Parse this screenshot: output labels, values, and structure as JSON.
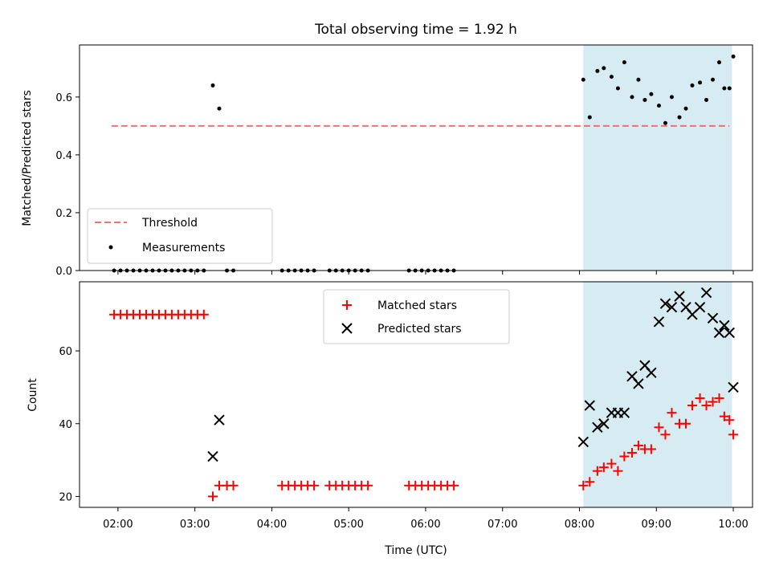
{
  "figure": {
    "title": "Total observing time = 1.92 h"
  },
  "chart_data": [
    {
      "type": "scatter",
      "ylabel": "Matched/Predicted stars",
      "xlim": [
        "01:30",
        "10:15"
      ],
      "ylim": [
        0,
        0.78
      ],
      "yticks": [
        0.0,
        0.2,
        0.4,
        0.6
      ],
      "ytick_labels": [
        "0.0",
        "0.2",
        "0.4",
        "0.6"
      ],
      "grid": false,
      "legend_position": "lower-left",
      "highlight_span": {
        "from": "08:03",
        "to": "09:59",
        "color": "#add8e6"
      },
      "threshold": {
        "name": "Threshold",
        "y": 0.5,
        "x_from": "01:55",
        "x_to": "09:57",
        "color": "#ff6e6e"
      },
      "measurements": {
        "name": "Measurements",
        "color": "#000000",
        "points": [
          [
            "01:57",
            0.0
          ],
          [
            "02:02",
            0.0
          ],
          [
            "02:07",
            0.0
          ],
          [
            "02:12",
            0.0
          ],
          [
            "02:17",
            0.0
          ],
          [
            "02:22",
            0.0
          ],
          [
            "02:27",
            0.0
          ],
          [
            "02:32",
            0.0
          ],
          [
            "02:37",
            0.0
          ],
          [
            "02:42",
            0.0
          ],
          [
            "02:47",
            0.0
          ],
          [
            "02:52",
            0.0
          ],
          [
            "02:57",
            0.0
          ],
          [
            "03:02",
            0.0
          ],
          [
            "03:07",
            0.0
          ],
          [
            "03:14",
            0.64
          ],
          [
            "03:19",
            0.56
          ],
          [
            "03:25",
            0.0
          ],
          [
            "03:30",
            0.0
          ],
          [
            "04:08",
            0.0
          ],
          [
            "04:13",
            0.0
          ],
          [
            "04:18",
            0.0
          ],
          [
            "04:23",
            0.0
          ],
          [
            "04:28",
            0.0
          ],
          [
            "04:33",
            0.0
          ],
          [
            "04:45",
            0.0
          ],
          [
            "04:50",
            0.0
          ],
          [
            "04:55",
            0.0
          ],
          [
            "05:00",
            0.0
          ],
          [
            "05:05",
            0.0
          ],
          [
            "05:10",
            0.0
          ],
          [
            "05:15",
            0.0
          ],
          [
            "05:47",
            0.0
          ],
          [
            "05:52",
            0.0
          ],
          [
            "05:57",
            0.0
          ],
          [
            "06:02",
            0.0
          ],
          [
            "06:07",
            0.0
          ],
          [
            "06:12",
            0.0
          ],
          [
            "06:17",
            0.0
          ],
          [
            "06:22",
            0.0
          ],
          [
            "08:03",
            0.66
          ],
          [
            "08:08",
            0.53
          ],
          [
            "08:14",
            0.69
          ],
          [
            "08:19",
            0.7
          ],
          [
            "08:25",
            0.67
          ],
          [
            "08:30",
            0.63
          ],
          [
            "08:35",
            0.72
          ],
          [
            "08:41",
            0.6
          ],
          [
            "08:46",
            0.66
          ],
          [
            "08:51",
            0.59
          ],
          [
            "08:56",
            0.61
          ],
          [
            "09:02",
            0.57
          ],
          [
            "09:07",
            0.51
          ],
          [
            "09:12",
            0.6
          ],
          [
            "09:18",
            0.53
          ],
          [
            "09:23",
            0.56
          ],
          [
            "09:28",
            0.64
          ],
          [
            "09:34",
            0.65
          ],
          [
            "09:39",
            0.59
          ],
          [
            "09:44",
            0.66
          ],
          [
            "09:49",
            0.72
          ],
          [
            "09:53",
            0.63
          ],
          [
            "09:57",
            0.63
          ],
          [
            "10:00",
            0.74
          ]
        ]
      }
    },
    {
      "type": "scatter",
      "xlabel": "Time (UTC)",
      "ylabel": "Count",
      "xlim": [
        "01:30",
        "10:15"
      ],
      "xticks": [
        "02:00",
        "03:00",
        "04:00",
        "05:00",
        "06:00",
        "07:00",
        "08:00",
        "09:00",
        "10:00"
      ],
      "ylim": [
        17,
        79
      ],
      "yticks": [
        20,
        40,
        60
      ],
      "grid": false,
      "legend_position": "upper-center",
      "highlight_span": {
        "from": "08:03",
        "to": "09:59",
        "color": "#add8e6"
      },
      "series": [
        {
          "name": "Matched stars",
          "marker": "+",
          "color": "#ff0000",
          "points": [
            [
              "01:57",
              70
            ],
            [
              "02:02",
              70
            ],
            [
              "02:07",
              70
            ],
            [
              "02:12",
              70
            ],
            [
              "02:17",
              70
            ],
            [
              "02:22",
              70
            ],
            [
              "02:27",
              70
            ],
            [
              "02:32",
              70
            ],
            [
              "02:37",
              70
            ],
            [
              "02:42",
              70
            ],
            [
              "02:47",
              70
            ],
            [
              "02:52",
              70
            ],
            [
              "02:57",
              70
            ],
            [
              "03:02",
              70
            ],
            [
              "03:07",
              70
            ],
            [
              "03:14",
              20
            ],
            [
              "03:19",
              23
            ],
            [
              "03:25",
              23
            ],
            [
              "03:30",
              23
            ],
            [
              "04:08",
              23
            ],
            [
              "04:13",
              23
            ],
            [
              "04:18",
              23
            ],
            [
              "04:23",
              23
            ],
            [
              "04:28",
              23
            ],
            [
              "04:33",
              23
            ],
            [
              "04:45",
              23
            ],
            [
              "04:50",
              23
            ],
            [
              "04:55",
              23
            ],
            [
              "05:00",
              23
            ],
            [
              "05:05",
              23
            ],
            [
              "05:10",
              23
            ],
            [
              "05:15",
              23
            ],
            [
              "05:47",
              23
            ],
            [
              "05:52",
              23
            ],
            [
              "05:57",
              23
            ],
            [
              "06:02",
              23
            ],
            [
              "06:07",
              23
            ],
            [
              "06:12",
              23
            ],
            [
              "06:17",
              23
            ],
            [
              "06:22",
              23
            ],
            [
              "08:03",
              23
            ],
            [
              "08:08",
              24
            ],
            [
              "08:14",
              27
            ],
            [
              "08:19",
              28
            ],
            [
              "08:25",
              29
            ],
            [
              "08:30",
              27
            ],
            [
              "08:35",
              31
            ],
            [
              "08:41",
              32
            ],
            [
              "08:46",
              34
            ],
            [
              "08:51",
              33
            ],
            [
              "08:56",
              33
            ],
            [
              "09:02",
              39
            ],
            [
              "09:07",
              37
            ],
            [
              "09:12",
              43
            ],
            [
              "09:18",
              40
            ],
            [
              "09:23",
              40
            ],
            [
              "09:28",
              45
            ],
            [
              "09:34",
              47
            ],
            [
              "09:39",
              45
            ],
            [
              "09:44",
              46
            ],
            [
              "09:49",
              47
            ],
            [
              "09:53",
              42
            ],
            [
              "09:57",
              41
            ],
            [
              "10:00",
              37
            ]
          ]
        },
        {
          "name": "Predicted stars",
          "marker": "x",
          "color": "#000000",
          "points": [
            [
              "03:14",
              31
            ],
            [
              "03:19",
              41
            ],
            [
              "08:03",
              35
            ],
            [
              "08:08",
              45
            ],
            [
              "08:14",
              39
            ],
            [
              "08:19",
              40
            ],
            [
              "08:25",
              43
            ],
            [
              "08:30",
              43
            ],
            [
              "08:35",
              43
            ],
            [
              "08:41",
              53
            ],
            [
              "08:46",
              51
            ],
            [
              "08:51",
              56
            ],
            [
              "08:56",
              54
            ],
            [
              "09:02",
              68
            ],
            [
              "09:07",
              73
            ],
            [
              "09:12",
              72
            ],
            [
              "09:18",
              75
            ],
            [
              "09:23",
              72
            ],
            [
              "09:28",
              70
            ],
            [
              "09:34",
              72
            ],
            [
              "09:39",
              76
            ],
            [
              "09:44",
              69
            ],
            [
              "09:49",
              65
            ],
            [
              "09:53",
              67
            ],
            [
              "09:57",
              65
            ],
            [
              "10:00",
              50
            ]
          ]
        }
      ]
    }
  ]
}
